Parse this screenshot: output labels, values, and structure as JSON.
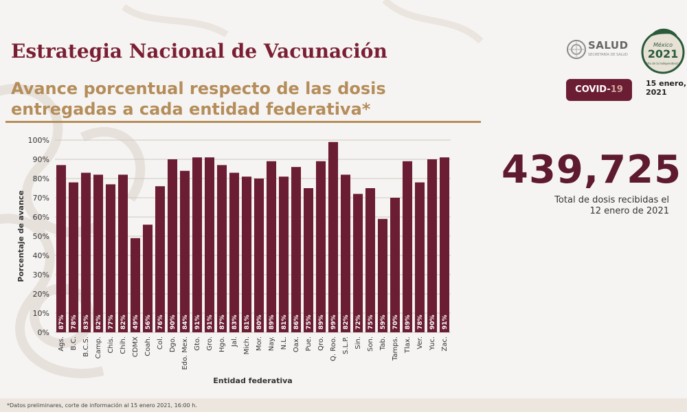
{
  "header": {
    "title": "Estrategia Nacional de Vacunación",
    "subtitle_line1": "Avance porcentual respecto de las dosis",
    "subtitle_line2": "entregadas a cada entidad federativa*"
  },
  "logos": {
    "salud_word": "SALUD",
    "salud_sub": "SECRETARÍA DE SALUD",
    "seal_top": "México",
    "seal_year": "2021",
    "seal_bottom": "Año de la Independencia"
  },
  "badge": {
    "prefix": "COVID-",
    "number": "19"
  },
  "date": {
    "line1": "15 enero,",
    "line2": "2021"
  },
  "stat": {
    "value": "439,725",
    "caption_line1": "Total de dosis recibidas el",
    "caption_line2": "12 enero de 2021"
  },
  "footnote": "*Datos preliminares, corte de información al 15 enero 2021, 16:00 h.",
  "colors": {
    "bar": "#6b1d33",
    "title": "#7a1f33",
    "gold": "#b48d5a",
    "grid": "#cfc8c2"
  },
  "chart_data": {
    "type": "bar",
    "xlabel": "Entidad federativa",
    "ylabel": "Porcentaje de avance",
    "ylim": [
      0,
      100
    ],
    "yticks": [
      "0%",
      "10%",
      "20%",
      "30%",
      "40%",
      "50%",
      "60%",
      "70%",
      "80%",
      "90%",
      "100%"
    ],
    "grid": true,
    "categories": [
      "Ags.",
      "B.C.",
      "B.C.S.",
      "Camp.",
      "Chis.",
      "Chih.",
      "CDMX",
      "Coah.",
      "Col.",
      "Dgo.",
      "Edo. Mex.",
      "Gto.",
      "Gro.",
      "Hgo.",
      "Jal.",
      "Mich.",
      "Mor.",
      "Nay.",
      "N.L.",
      "Oax.",
      "Pue.",
      "Qro.",
      "Q. Roo.",
      "S.L.P.",
      "Sin.",
      "Son.",
      "Tab.",
      "Tamps.",
      "Tlax.",
      "Ver.",
      "Yuc.",
      "Zac."
    ],
    "values": [
      87,
      78,
      83,
      82,
      77,
      82,
      49,
      56,
      76,
      90,
      84,
      91,
      91,
      87,
      83,
      81,
      80,
      89,
      81,
      86,
      75,
      89,
      99,
      82,
      72,
      75,
      59,
      70,
      89,
      78,
      90,
      91
    ],
    "value_labels": [
      "87%",
      "78%",
      "83%",
      "82%",
      "77%",
      "82%",
      "49%",
      "56%",
      "76%",
      "90%",
      "84%",
      "91%",
      "91%",
      "87%",
      "83%",
      "81%",
      "80%",
      "89%",
      "81%",
      "86%",
      "75%",
      "89%",
      "99%",
      "82%",
      "72%",
      "75%",
      "59%",
      "70%",
      "89%",
      "78%",
      "90%",
      "91%"
    ]
  }
}
